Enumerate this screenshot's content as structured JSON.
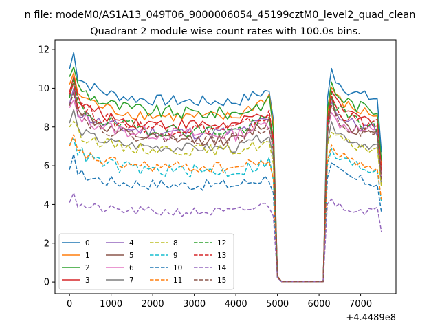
{
  "figure": {
    "suptitle": "n file: modeM0/AS1A13_049T06_9000006054_45199cztM0_level2_quad_clean",
    "title": "Quadrant 2 module wise count rates with 100.0s bins.",
    "x_offset_label": "+4.4489e8"
  },
  "chart_data": {
    "type": "line",
    "title": "Quadrant 2 module wise count rates with 100.0s bins.",
    "xlabel": "",
    "ylabel": "",
    "x_offset": "+4.4489e8",
    "xlim": [
      -350,
      7850
    ],
    "ylim": [
      -0.6,
      12.5
    ],
    "xticks": [
      0,
      1000,
      2000,
      3000,
      4000,
      5000,
      6000,
      7000
    ],
    "yticks": [
      0,
      2,
      4,
      6,
      8,
      10,
      12
    ],
    "grid": false,
    "legend": {
      "position": "lower-left",
      "columns": 4
    },
    "palette": [
      "#1f77b4",
      "#ff7f0e",
      "#2ca02c",
      "#d62728",
      "#9467bd",
      "#8c564b",
      "#e377c2",
      "#7f7f7f",
      "#bcbd22",
      "#17becf"
    ],
    "segments": [
      {
        "x_start": 0,
        "x_end": 4800,
        "step": 100
      },
      {
        "x": [
          4900,
          5000,
          5100,
          5200,
          5300,
          5400,
          5500,
          5600,
          5700,
          5800,
          5900,
          6000,
          6100
        ]
      },
      {
        "x_start": 6200,
        "x_end": 7500,
        "step": 100
      }
    ],
    "series": [
      {
        "name": "0",
        "dash": false,
        "active_level": 9.3,
        "start": 11.0,
        "initial_peak": 11.85,
        "late_level": 9.9,
        "noise": 0.3
      },
      {
        "name": "1",
        "dash": false,
        "active_level": 8.5,
        "start": 10.2,
        "initial_peak": 10.8,
        "late_level": 9.6,
        "noise": 0.3
      },
      {
        "name": "2",
        "dash": false,
        "active_level": 8.7,
        "start": 10.6,
        "initial_peak": 11.1,
        "late_level": 9.3,
        "noise": 0.35
      },
      {
        "name": "3",
        "dash": false,
        "active_level": 8.1,
        "start": 9.8,
        "initial_peak": 10.6,
        "late_level": 8.8,
        "noise": 0.3
      },
      {
        "name": "4",
        "dash": false,
        "active_level": 7.7,
        "start": 9.2,
        "initial_peak": 10.0,
        "late_level": 8.4,
        "noise": 0.35
      },
      {
        "name": "5",
        "dash": false,
        "active_level": 7.3,
        "start": 9.6,
        "initial_peak": 10.3,
        "late_level": 8.3,
        "noise": 0.3
      },
      {
        "name": "6",
        "dash": false,
        "active_level": 7.6,
        "start": 9.0,
        "initial_peak": 9.4,
        "late_level": 8.2,
        "noise": 0.35
      },
      {
        "name": "7",
        "dash": false,
        "active_level": 6.9,
        "start": 8.2,
        "initial_peak": 8.9,
        "late_level": 7.6,
        "noise": 0.25
      },
      {
        "name": "8",
        "dash": true,
        "active_level": 6.8,
        "start": 8.0,
        "initial_peak": 8.3,
        "late_level": 7.2,
        "noise": 0.3
      },
      {
        "name": "9",
        "dash": true,
        "active_level": 5.7,
        "start": 7.1,
        "initial_peak": 7.4,
        "late_level": 6.2,
        "noise": 0.35
      },
      {
        "name": "10",
        "dash": true,
        "active_level": 5.0,
        "start": 5.8,
        "initial_peak": 6.6,
        "late_level": 5.4,
        "noise": 0.3
      },
      {
        "name": "11",
        "dash": true,
        "active_level": 5.9,
        "start": 7.0,
        "initial_peak": 7.6,
        "late_level": 6.3,
        "noise": 0.3
      },
      {
        "name": "12",
        "dash": true,
        "active_level": 7.8,
        "start": 9.5,
        "initial_peak": 10.5,
        "late_level": 8.4,
        "noise": 0.35
      },
      {
        "name": "13",
        "dash": true,
        "active_level": 7.9,
        "start": 9.7,
        "initial_peak": 10.3,
        "late_level": 8.6,
        "noise": 0.35
      },
      {
        "name": "14",
        "dash": true,
        "active_level": 3.6,
        "start": 4.1,
        "initial_peak": 4.6,
        "late_level": 4.0,
        "noise": 0.25
      },
      {
        "name": "15",
        "dash": true,
        "active_level": 7.4,
        "start": 9.1,
        "initial_peak": 9.8,
        "late_level": 8.0,
        "noise": 0.3
      }
    ],
    "gap_values": {
      "4900": "late_level*0.85",
      "5000": 0.2,
      "5100": 0.02,
      "6100": 0.02
    }
  }
}
